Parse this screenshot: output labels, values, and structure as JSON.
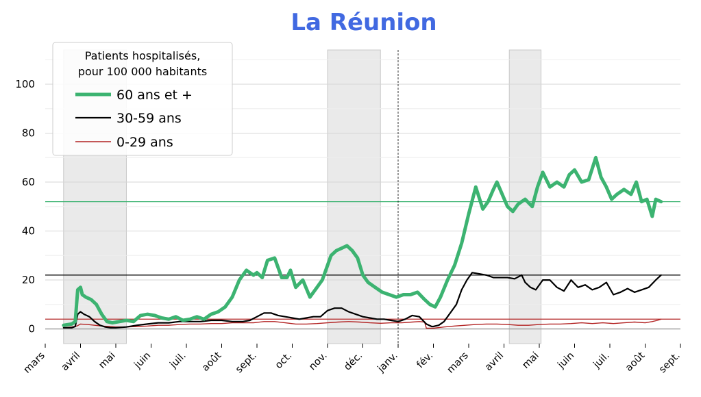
{
  "chart_data": {
    "type": "line",
    "title": "La Réunion",
    "title_color": "#4169e1",
    "ylim": [
      -6,
      114
    ],
    "yticks": [
      0,
      20,
      40,
      60,
      80,
      100
    ],
    "ytick_labels": [
      "0",
      "20",
      "40",
      "60",
      "80",
      "100"
    ],
    "x_range_months": [
      0,
      18
    ],
    "xtick_labels": [
      "mars",
      "avril",
      "mai",
      "juin",
      "juil.",
      "août",
      "sept.",
      "oct.",
      "nov.",
      "déc.",
      "janv.",
      "fév.",
      "mars",
      "avril",
      "mai",
      "juin",
      "juil.",
      "août",
      "sept."
    ],
    "grid": true,
    "legend": {
      "placement": "top-left",
      "title_lines": [
        "Patients hospitalisés,",
        "pour 100 000 habitants"
      ]
    },
    "shaded_periods": [
      [
        0.52,
        2.3
      ],
      [
        8.0,
        9.5
      ],
      [
        13.15,
        14.05
      ]
    ],
    "vline_x": 10.0,
    "hlines": [
      {
        "y": 52,
        "color": "#3cb371"
      },
      {
        "y": 22,
        "color": "#000000"
      },
      {
        "y": 4,
        "color": "#b22222"
      }
    ],
    "series": [
      {
        "name": "60 ans et +",
        "color": "#3cb371",
        "width": 5,
        "x": [
          0.52,
          0.75,
          0.85,
          0.92,
          1.0,
          1.05,
          1.15,
          1.3,
          1.45,
          1.6,
          1.75,
          1.9,
          2.1,
          2.3,
          2.5,
          2.7,
          2.9,
          3.1,
          3.3,
          3.5,
          3.7,
          3.9,
          4.1,
          4.3,
          4.5,
          4.7,
          4.9,
          5.1,
          5.3,
          5.5,
          5.7,
          5.9,
          6.0,
          6.15,
          6.3,
          6.5,
          6.7,
          6.85,
          6.95,
          7.1,
          7.3,
          7.5,
          7.7,
          7.85,
          8.0,
          8.1,
          8.25,
          8.4,
          8.55,
          8.7,
          8.85,
          9.0,
          9.15,
          9.35,
          9.55,
          9.75,
          9.95,
          10.15,
          10.35,
          10.55,
          10.75,
          10.9,
          11.05,
          11.2,
          11.4,
          11.6,
          11.8,
          12.0,
          12.2,
          12.4,
          12.55,
          12.7,
          12.8,
          12.95,
          13.1,
          13.25,
          13.4,
          13.6,
          13.8,
          13.95,
          14.1,
          14.3,
          14.5,
          14.7,
          14.85,
          15.0,
          15.2,
          15.4,
          15.6,
          15.75,
          15.9,
          16.05,
          16.2,
          16.4,
          16.6,
          16.75,
          16.9,
          17.05,
          17.2,
          17.3,
          17.45
        ],
        "y": [
          1.5,
          2,
          3,
          16,
          17,
          14,
          13,
          12,
          10,
          6,
          3,
          2.5,
          3,
          3.5,
          3,
          5.5,
          6,
          5.5,
          4.5,
          4,
          5,
          3.5,
          4,
          5,
          4,
          6,
          7,
          9,
          13,
          20,
          24,
          22,
          23,
          21,
          28,
          29,
          21,
          21,
          24,
          17,
          20,
          13,
          17,
          20,
          26,
          30,
          32,
          33,
          34,
          32,
          29,
          22,
          19,
          17,
          15,
          14,
          13,
          14,
          14,
          15,
          12,
          10,
          9,
          13,
          20,
          26,
          35,
          47,
          58,
          49,
          52,
          57,
          60,
          55,
          50,
          48,
          51,
          53,
          50,
          58,
          64,
          58,
          60,
          58,
          63,
          65,
          60,
          61,
          70,
          62,
          58,
          53,
          55,
          57,
          55,
          60,
          52,
          53,
          46,
          53,
          52
        ]
      },
      {
        "name": "30-59 ans",
        "color": "#000000",
        "width": 2.2,
        "x": [
          0.52,
          0.75,
          0.85,
          0.92,
          1.0,
          1.1,
          1.25,
          1.4,
          1.55,
          1.7,
          1.85,
          2.0,
          2.3,
          2.6,
          2.9,
          3.2,
          3.5,
          3.8,
          4.1,
          4.4,
          4.7,
          5.0,
          5.3,
          5.6,
          5.8,
          6.0,
          6.2,
          6.4,
          6.6,
          6.8,
          7.0,
          7.2,
          7.4,
          7.6,
          7.8,
          8.0,
          8.2,
          8.4,
          8.6,
          8.8,
          9.0,
          9.2,
          9.4,
          9.6,
          9.8,
          10.0,
          10.2,
          10.4,
          10.6,
          10.8,
          10.95,
          11.0,
          11.15,
          11.3,
          11.5,
          11.65,
          11.8,
          11.95,
          12.1,
          12.3,
          12.5,
          12.7,
          12.9,
          13.1,
          13.3,
          13.5,
          13.6,
          13.75,
          13.9,
          14.1,
          14.3,
          14.5,
          14.7,
          14.9,
          15.1,
          15.3,
          15.5,
          15.7,
          15.9,
          16.1,
          16.3,
          16.5,
          16.7,
          16.9,
          17.1,
          17.3,
          17.45
        ],
        "y": [
          0.5,
          0.5,
          1,
          6,
          7,
          6,
          5,
          3,
          1.5,
          0.8,
          0.5,
          0.5,
          0.8,
          1.5,
          2,
          2.5,
          2.5,
          3,
          3,
          3,
          3.5,
          3.5,
          3,
          3,
          3.5,
          5,
          6.5,
          6.5,
          5.5,
          5,
          4.5,
          4,
          4.5,
          5,
          5,
          7.5,
          8.5,
          8.5,
          7,
          6,
          5,
          4.5,
          4,
          4,
          3.5,
          3,
          4,
          5.5,
          5,
          2,
          1,
          1,
          1.5,
          3,
          7,
          10,
          16,
          20,
          23,
          22.5,
          22,
          21,
          21,
          21,
          20.5,
          22,
          19,
          17,
          16,
          20,
          20,
          17,
          15.5,
          20,
          17,
          18,
          16,
          17,
          19,
          14,
          15,
          16.5,
          15,
          16,
          17,
          20,
          22
        ]
      },
      {
        "name": "0-29 ans",
        "color": "#b22222",
        "width": 1.4,
        "x": [
          0.52,
          0.75,
          0.9,
          1.0,
          1.2,
          1.4,
          1.6,
          1.8,
          2.0,
          2.3,
          2.6,
          2.9,
          3.2,
          3.5,
          3.8,
          4.1,
          4.4,
          4.7,
          5.0,
          5.3,
          5.6,
          5.9,
          6.2,
          6.5,
          6.8,
          7.1,
          7.4,
          7.7,
          8.0,
          8.3,
          8.6,
          8.9,
          9.2,
          9.5,
          9.8,
          10.1,
          10.4,
          10.6,
          10.75,
          10.8,
          11.0,
          11.3,
          11.6,
          11.9,
          12.2,
          12.5,
          12.8,
          13.1,
          13.4,
          13.7,
          14.0,
          14.3,
          14.6,
          14.9,
          15.2,
          15.5,
          15.8,
          16.1,
          16.4,
          16.7,
          17.0,
          17.2,
          17.35,
          17.45
        ],
        "y": [
          0.5,
          0.8,
          1.2,
          2,
          1.8,
          1.5,
          1.2,
          1,
          0.8,
          0.8,
          1,
          1.2,
          1.5,
          1.5,
          1.8,
          2,
          2,
          2.2,
          2.2,
          2.5,
          2.5,
          2.5,
          3,
          3,
          2.5,
          2,
          2,
          2.2,
          2.5,
          2.8,
          3,
          2.8,
          2.5,
          2.3,
          2.5,
          2.5,
          2.8,
          3,
          2.8,
          0.3,
          0.3,
          0.8,
          1.2,
          1.5,
          1.8,
          2,
          2,
          1.8,
          1.5,
          1.5,
          1.8,
          2,
          2,
          2.2,
          2.5,
          2.2,
          2.5,
          2.2,
          2.5,
          2.8,
          2.5,
          3,
          3.5,
          4
        ]
      }
    ]
  }
}
